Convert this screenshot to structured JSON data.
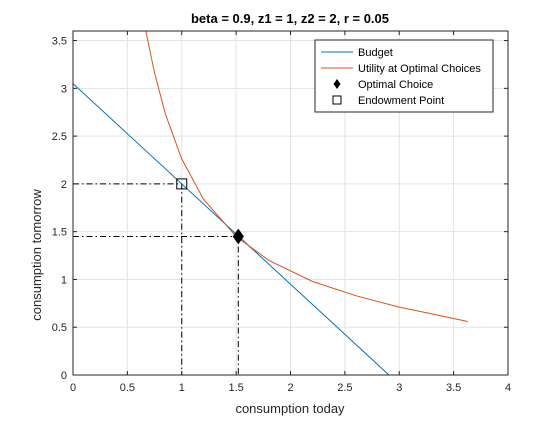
{
  "chart_data": {
    "type": "line",
    "title": "beta = 0.9, z1 = 1, z2 = 2, r = 0.05",
    "xlabel": "consumption today",
    "ylabel": "consumption tomorrow",
    "xlim": [
      0,
      4
    ],
    "ylim": [
      0,
      3.6
    ],
    "xticks": [
      0,
      0.5,
      1,
      1.5,
      2,
      2.5,
      3,
      3.5,
      4
    ],
    "xtick_labels": [
      "0",
      "0.5",
      "1",
      "1.5",
      "2",
      "2.5",
      "3",
      "3.5",
      "4"
    ],
    "yticks": [
      0,
      0.5,
      1,
      1.5,
      2,
      2.5,
      3,
      3.5
    ],
    "ytick_labels": [
      "0",
      "0.5",
      "1",
      "1.5",
      "2",
      "2.5",
      "3",
      "3.5"
    ],
    "grid": true,
    "legend_position": "top-right",
    "series": [
      {
        "name": "Budget",
        "kind": "line",
        "color": "#0072BD",
        "x": [
          0,
          2.905
        ],
        "y": [
          3.05,
          0
        ]
      },
      {
        "name": "Utility at Optimal Choices",
        "kind": "line",
        "color": "#D95319",
        "x": [
          0.67,
          0.75,
          0.85,
          1.0,
          1.2,
          1.5,
          1.8,
          2.2,
          2.6,
          3.0,
          3.3,
          3.63
        ],
        "y": [
          3.6,
          3.16,
          2.73,
          2.26,
          1.84,
          1.45,
          1.2,
          0.98,
          0.83,
          0.71,
          0.64,
          0.56
        ]
      },
      {
        "name": "Optimal Choice",
        "kind": "marker",
        "marker": "diamond",
        "color": "#000000",
        "x": [
          1.52
        ],
        "y": [
          1.45
        ]
      },
      {
        "name": "Endowment Point",
        "kind": "marker",
        "marker": "square",
        "color": "#000000",
        "x": [
          1.0
        ],
        "y": [
          2.0
        ]
      }
    ],
    "reference_lines": [
      {
        "style": "dash-dot",
        "color": "#000000",
        "x": [
          0,
          1.0,
          1.0
        ],
        "y": [
          2.0,
          2.0,
          0
        ]
      },
      {
        "style": "dash-dot",
        "color": "#000000",
        "x": [
          0,
          1.52,
          1.52
        ],
        "y": [
          1.45,
          1.45,
          0
        ]
      }
    ]
  }
}
